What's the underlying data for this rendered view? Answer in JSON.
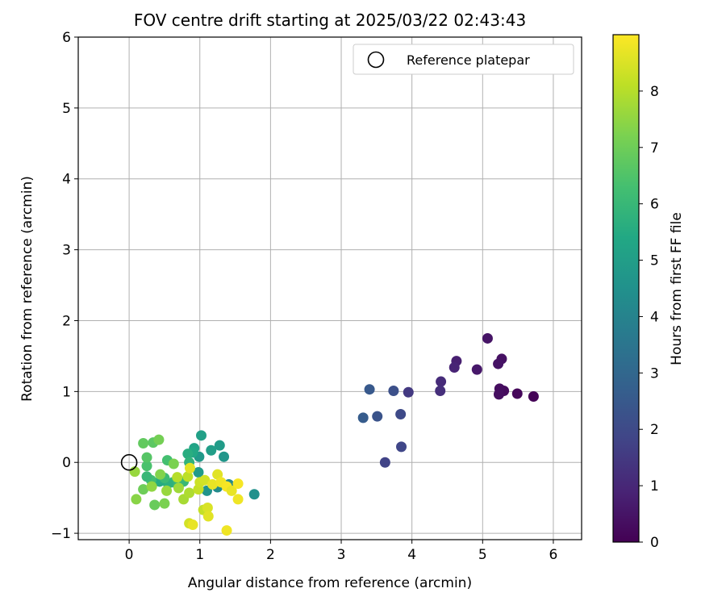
{
  "chart_data": {
    "type": "scatter",
    "title": "FOV centre drift starting at 2025/03/22 02:43:43",
    "xlabel": "Angular distance from reference (arcmin)",
    "ylabel": "Rotation from reference (arcmin)",
    "xlim": [
      -0.72,
      6.4
    ],
    "ylim": [
      -1.09,
      6.0
    ],
    "xticks": [
      0,
      1,
      2,
      3,
      4,
      5,
      6
    ],
    "yticks": [
      -1,
      0,
      1,
      2,
      3,
      4,
      5,
      6
    ],
    "grid": true,
    "legend": {
      "placement": "top-right",
      "entries": [
        "Reference platepar"
      ]
    },
    "reference_point": {
      "x": 0,
      "y": 0,
      "label": "Reference platepar"
    },
    "colorbar": {
      "label": "Hours from first FF file",
      "colormap": "viridis",
      "range": [
        0,
        9.0
      ],
      "ticks": [
        0,
        1,
        2,
        3,
        4,
        5,
        6,
        7,
        8
      ]
    },
    "series": [
      {
        "points": [
          {
            "x": 5.72,
            "y": 0.93,
            "c": 0.05
          },
          {
            "x": 5.49,
            "y": 0.97,
            "c": 0.15
          },
          {
            "x": 5.3,
            "y": 1.01,
            "c": 0.25
          },
          {
            "x": 5.24,
            "y": 1.04,
            "c": 0.3
          },
          {
            "x": 5.23,
            "y": 0.96,
            "c": 0.35
          },
          {
            "x": 5.27,
            "y": 1.46,
            "c": 0.4
          },
          {
            "x": 5.22,
            "y": 1.39,
            "c": 0.45
          },
          {
            "x": 5.07,
            "y": 1.75,
            "c": 0.5
          },
          {
            "x": 4.92,
            "y": 1.31,
            "c": 0.6
          },
          {
            "x": 4.63,
            "y": 1.43,
            "c": 0.8
          },
          {
            "x": 4.6,
            "y": 1.34,
            "c": 0.9
          },
          {
            "x": 4.41,
            "y": 1.14,
            "c": 1.1
          },
          {
            "x": 4.4,
            "y": 1.01,
            "c": 1.2
          },
          {
            "x": 3.95,
            "y": 0.99,
            "c": 1.5
          },
          {
            "x": 3.62,
            "y": 0.0,
            "c": 1.8
          },
          {
            "x": 3.85,
            "y": 0.22,
            "c": 1.9
          },
          {
            "x": 3.84,
            "y": 0.68,
            "c": 2.0
          },
          {
            "x": 3.74,
            "y": 1.01,
            "c": 2.2
          },
          {
            "x": 3.51,
            "y": 0.65,
            "c": 2.3
          },
          {
            "x": 3.4,
            "y": 1.03,
            "c": 2.5
          },
          {
            "x": 3.31,
            "y": 0.63,
            "c": 2.6
          },
          {
            "x": 1.77,
            "y": -0.45,
            "c": 4.5
          },
          {
            "x": 1.41,
            "y": -0.31,
            "c": 4.2
          },
          {
            "x": 1.25,
            "y": -0.35,
            "c": 4.3
          },
          {
            "x": 1.34,
            "y": 0.08,
            "c": 4.7
          },
          {
            "x": 1.28,
            "y": 0.24,
            "c": 4.9
          },
          {
            "x": 1.16,
            "y": 0.17,
            "c": 5.0
          },
          {
            "x": 1.02,
            "y": 0.38,
            "c": 5.1
          },
          {
            "x": 0.99,
            "y": 0.08,
            "c": 4.8
          },
          {
            "x": 0.98,
            "y": -0.14,
            "c": 4.9
          },
          {
            "x": 1.1,
            "y": -0.4,
            "c": 4.6
          },
          {
            "x": 0.92,
            "y": 0.2,
            "c": 5.2
          },
          {
            "x": 0.9,
            "y": 0.14,
            "c": 5.4
          },
          {
            "x": 0.83,
            "y": 0.12,
            "c": 5.6
          },
          {
            "x": 0.85,
            "y": 0.0,
            "c": 5.8
          },
          {
            "x": 0.77,
            "y": -0.27,
            "c": 6.0
          },
          {
            "x": 0.62,
            "y": -0.28,
            "c": 5.9
          },
          {
            "x": 0.55,
            "y": -0.3,
            "c": 5.7
          },
          {
            "x": 0.43,
            "y": -0.27,
            "c": 5.5
          },
          {
            "x": 0.5,
            "y": -0.22,
            "c": 6.1
          },
          {
            "x": 0.54,
            "y": 0.03,
            "c": 6.3
          },
          {
            "x": 0.31,
            "y": -0.25,
            "c": 6.2
          },
          {
            "x": 0.25,
            "y": -0.2,
            "c": 6.0
          },
          {
            "x": 0.25,
            "y": -0.05,
            "c": 6.4
          },
          {
            "x": 0.25,
            "y": 0.07,
            "c": 6.6
          },
          {
            "x": 0.34,
            "y": 0.28,
            "c": 6.7
          },
          {
            "x": 0.2,
            "y": 0.27,
            "c": 6.8
          },
          {
            "x": 0.42,
            "y": 0.32,
            "c": 7.1
          },
          {
            "x": 0.63,
            "y": -0.02,
            "c": 7.2
          },
          {
            "x": 0.44,
            "y": -0.17,
            "c": 7.3
          },
          {
            "x": 0.36,
            "y": -0.6,
            "c": 6.9
          },
          {
            "x": 0.2,
            "y": -0.38,
            "c": 7.0
          },
          {
            "x": 0.1,
            "y": -0.52,
            "c": 7.4
          },
          {
            "x": 0.08,
            "y": -0.13,
            "c": 7.6
          },
          {
            "x": 0.32,
            "y": -0.34,
            "c": 7.5
          },
          {
            "x": 0.5,
            "y": -0.58,
            "c": 7.2
          },
          {
            "x": 0.53,
            "y": -0.4,
            "c": 7.6
          },
          {
            "x": 0.7,
            "y": -0.36,
            "c": 7.7
          },
          {
            "x": 0.77,
            "y": -0.52,
            "c": 7.8
          },
          {
            "x": 0.85,
            "y": -0.43,
            "c": 7.9
          },
          {
            "x": 0.68,
            "y": -0.21,
            "c": 8.0
          },
          {
            "x": 0.83,
            "y": -0.2,
            "c": 8.1
          },
          {
            "x": 0.86,
            "y": -0.08,
            "c": 8.6
          },
          {
            "x": 0.98,
            "y": -0.38,
            "c": 8.2
          },
          {
            "x": 1.0,
            "y": -0.28,
            "c": 8.3
          },
          {
            "x": 1.07,
            "y": -0.25,
            "c": 8.4
          },
          {
            "x": 1.05,
            "y": -0.67,
            "c": 8.2
          },
          {
            "x": 1.11,
            "y": -0.64,
            "c": 8.5
          },
          {
            "x": 1.12,
            "y": -0.76,
            "c": 8.6
          },
          {
            "x": 0.85,
            "y": -0.86,
            "c": 8.4
          },
          {
            "x": 0.9,
            "y": -0.88,
            "c": 8.7
          },
          {
            "x": 1.18,
            "y": -0.31,
            "c": 8.7
          },
          {
            "x": 1.25,
            "y": -0.17,
            "c": 8.6
          },
          {
            "x": 1.3,
            "y": -0.28,
            "c": 8.8
          },
          {
            "x": 1.38,
            "y": -0.34,
            "c": 8.9
          },
          {
            "x": 1.45,
            "y": -0.4,
            "c": 8.7
          },
          {
            "x": 1.54,
            "y": -0.3,
            "c": 8.9
          },
          {
            "x": 1.54,
            "y": -0.52,
            "c": 8.8
          },
          {
            "x": 1.38,
            "y": -0.96,
            "c": 8.8
          }
        ]
      }
    ]
  }
}
